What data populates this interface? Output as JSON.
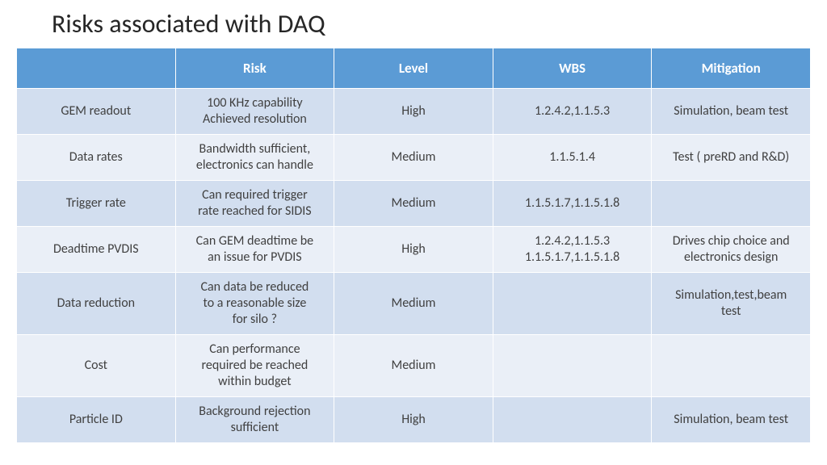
{
  "title": "Risks associated with DAQ",
  "table": {
    "type": "table",
    "header_bg": "#5b9bd5",
    "header_fg": "#ffffff",
    "row_odd_bg": "#d2deef",
    "row_even_bg": "#eaeff7",
    "text_color": "#404040",
    "header_fontsize": 17,
    "cell_fontsize": 16,
    "columns": [
      "",
      "Risk",
      "Level",
      "WBS",
      "Mitigation"
    ],
    "rows": [
      {
        "name": "GEM readout",
        "risk": "100 KHz capability\nAchieved resolution",
        "level": "High",
        "wbs": "1.2.4.2,1.1.5.3",
        "mitigation": "Simulation, beam test"
      },
      {
        "name": "Data rates",
        "risk": "Bandwidth sufficient,\nelectronics can handle",
        "level": "Medium",
        "wbs": "1.1.5.1.4",
        "mitigation": "Test ( preRD and R&D)"
      },
      {
        "name": "Trigger rate",
        "risk": "Can required trigger\nrate reached for SIDIS",
        "level": "Medium",
        "wbs": "1.1.5.1.7,1.1.5.1.8",
        "mitigation": ""
      },
      {
        "name": "Deadtime PVDIS",
        "risk": "Can GEM deadtime be\nan issue for PVDIS",
        "level": "High",
        "wbs": "1.2.4.2,1.1.5.3\n1.1.5.1.7,1.1.5.1.8",
        "mitigation": "Drives chip choice and\nelectronics design"
      },
      {
        "name": "Data reduction",
        "risk": "Can data be reduced\nto a reasonable size\nfor silo ?",
        "level": "Medium",
        "wbs": "",
        "mitigation": "Simulation,test,beam\ntest"
      },
      {
        "name": "Cost",
        "risk": "Can performance\nrequired be reached\nwithin budget",
        "level": "Medium",
        "wbs": "",
        "mitigation": ""
      },
      {
        "name": "Particle ID",
        "risk": "Background rejection\nsufficient",
        "level": "High",
        "wbs": "",
        "mitigation": "Simulation, beam test"
      }
    ]
  }
}
